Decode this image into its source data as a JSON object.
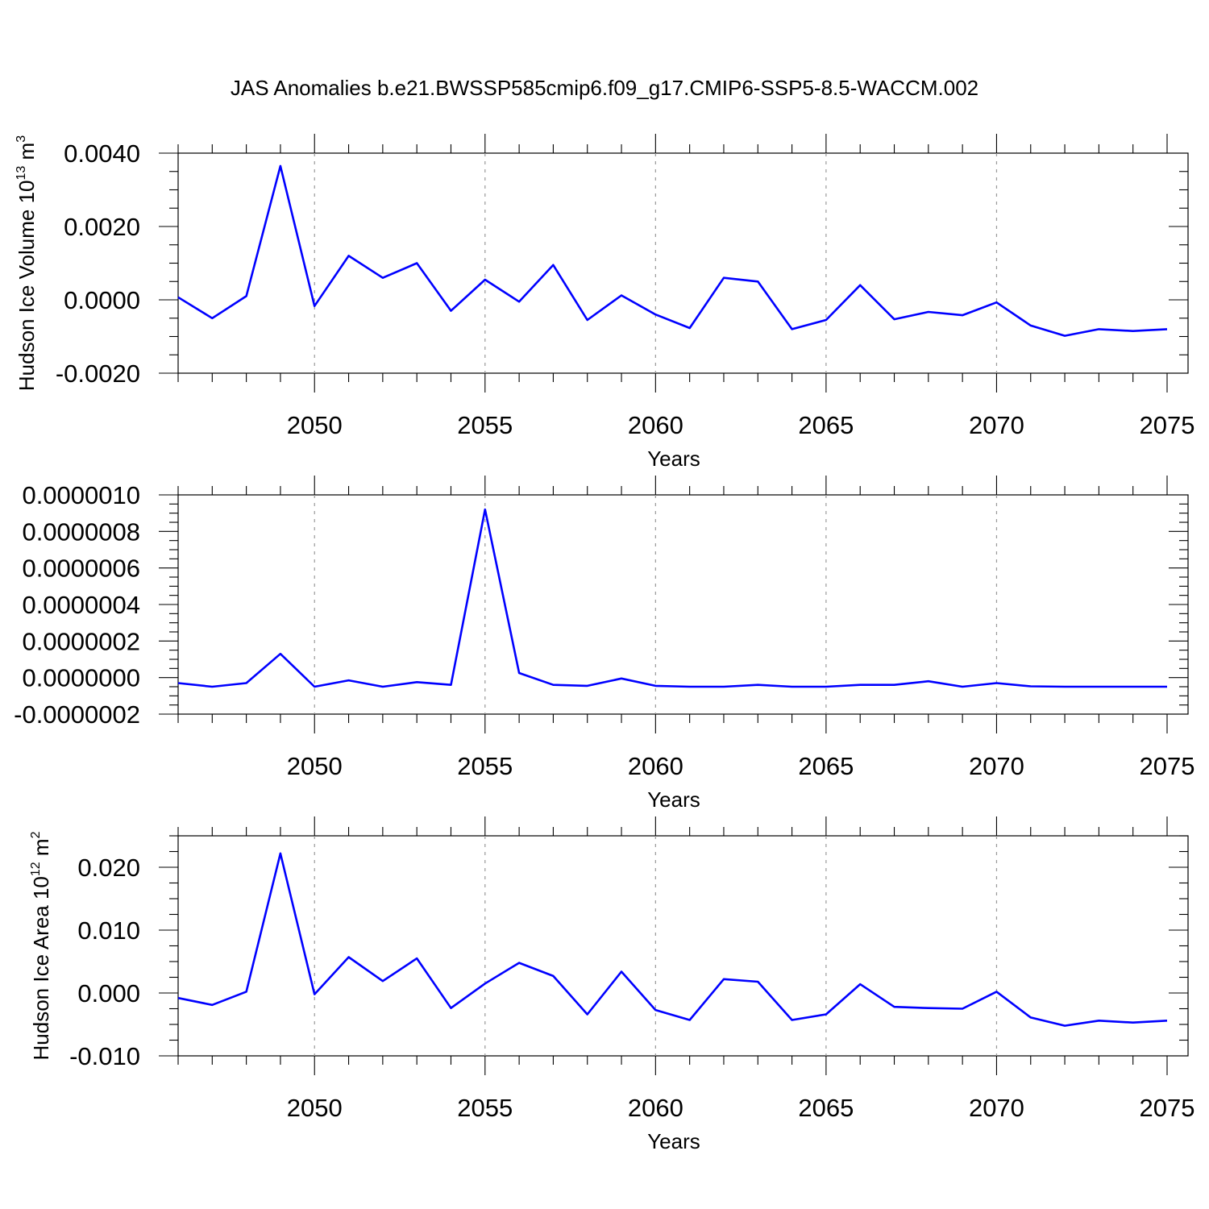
{
  "title": "JAS Anomalies b.e21.BWSSP585cmip6.f09_g17.CMIP6-SSP5-8.5-WACCM.002",
  "chart_data": [
    {
      "type": "line",
      "xlabel": "Years",
      "ylabel": {
        "prefix": "Hudson Ice Volume 10",
        "exp": "13",
        "unit": " m",
        "unit_exp": "3"
      },
      "xlim": [
        2046,
        2075
      ],
      "ylim": [
        -0.002,
        0.004
      ],
      "xticks": [
        "2050",
        "2055",
        "2060",
        "2065",
        "2070",
        "2075"
      ],
      "yticks": [
        "-0.0020",
        "0.0000",
        "0.0020",
        "0.0040"
      ],
      "grid": "vertical dashed at major x ticks",
      "color": "#0000ff",
      "x": [
        2046,
        2047,
        2048,
        2049,
        2050,
        2051,
        2052,
        2053,
        2054,
        2055,
        2056,
        2057,
        2058,
        2059,
        2060,
        2061,
        2062,
        2063,
        2064,
        2065,
        2066,
        2067,
        2068,
        2069,
        2070,
        2071,
        2072,
        2073,
        2074,
        2075
      ],
      "values": [
        7e-05,
        -0.0005,
        0.0001,
        0.00365,
        -0.00017,
        0.0012,
        0.0006,
        0.001,
        -0.0003,
        0.00055,
        -5e-05,
        0.00095,
        -0.00055,
        0.00012,
        -0.0004,
        -0.00077,
        0.0006,
        0.0005,
        -0.0008,
        -0.00055,
        0.0004,
        -0.00053,
        -0.00033,
        -0.00042,
        -7e-05,
        -0.0007,
        -0.00098,
        -0.0008,
        -0.00085,
        -0.0008
      ]
    },
    {
      "type": "line",
      "xlabel": "Years",
      "ylabel": null,
      "xlim": [
        2046,
        2075
      ],
      "ylim": [
        -2e-07,
        1e-06
      ],
      "xticks": [
        "2050",
        "2055",
        "2060",
        "2065",
        "2070",
        "2075"
      ],
      "yticks": [
        "-0.0000002",
        "0.0000000",
        "0.0000002",
        "0.0000004",
        "0.0000006",
        "0.0000008",
        "0.0000010"
      ],
      "grid": "vertical dashed at major x ticks",
      "color": "#0000ff",
      "x": [
        2046,
        2047,
        2048,
        2049,
        2050,
        2051,
        2052,
        2053,
        2054,
        2055,
        2056,
        2057,
        2058,
        2059,
        2060,
        2061,
        2062,
        2063,
        2064,
        2065,
        2066,
        2067,
        2068,
        2069,
        2070,
        2071,
        2072,
        2073,
        2074,
        2075
      ],
      "values": [
        -3e-08,
        -5e-08,
        -3e-08,
        1.3e-07,
        -5e-08,
        -1.5e-08,
        -5e-08,
        -2.5e-08,
        -4e-08,
        9.2e-07,
        2.5e-08,
        -4e-08,
        -4.5e-08,
        -5e-09,
        -4.5e-08,
        -5e-08,
        -5e-08,
        -4e-08,
        -5e-08,
        -5e-08,
        -4e-08,
        -4e-08,
        -2e-08,
        -5e-08,
        -3e-08,
        -4.8e-08,
        -5e-08,
        -5e-08,
        -5e-08,
        -5e-08
      ]
    },
    {
      "type": "line",
      "xlabel": "Years",
      "ylabel": {
        "prefix": "Hudson Ice Area 10",
        "exp": "12",
        "unit": " m",
        "unit_exp": "2"
      },
      "xlim": [
        2046,
        2075
      ],
      "ylim": [
        -0.01,
        0.025
      ],
      "xticks": [
        "2050",
        "2055",
        "2060",
        "2065",
        "2070",
        "2075"
      ],
      "yticks": [
        "-0.010",
        "0.000",
        "0.010",
        "0.020"
      ],
      "grid": "vertical dashed at major x ticks",
      "color": "#0000ff",
      "x": [
        2046,
        2047,
        2048,
        2049,
        2050,
        2051,
        2052,
        2053,
        2054,
        2055,
        2056,
        2057,
        2058,
        2059,
        2060,
        2061,
        2062,
        2063,
        2064,
        2065,
        2066,
        2067,
        2068,
        2069,
        2070,
        2071,
        2072,
        2073,
        2074,
        2075
      ],
      "values": [
        -0.0008,
        -0.0019,
        0.0002,
        0.0222,
        -0.0002,
        0.0057,
        0.0019,
        0.0055,
        -0.0024,
        0.0015,
        0.0048,
        0.0027,
        -0.0034,
        0.0034,
        -0.0027,
        -0.0043,
        0.0022,
        0.0018,
        -0.0043,
        -0.0034,
        0.0014,
        -0.0022,
        -0.0024,
        -0.0025,
        0.0002,
        -0.0039,
        -0.0052,
        -0.0044,
        -0.0047,
        -0.0044
      ]
    }
  ]
}
